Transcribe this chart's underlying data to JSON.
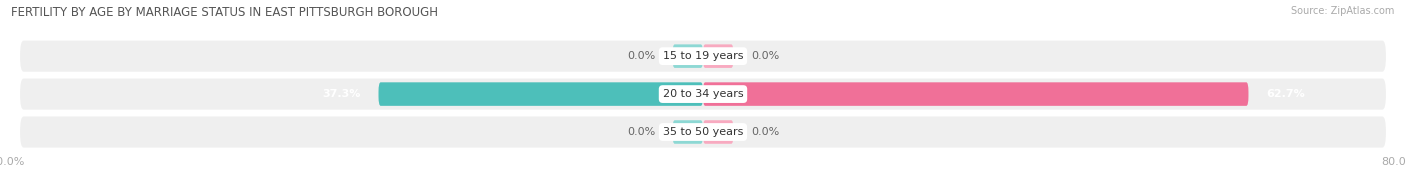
{
  "title": "FERTILITY BY AGE BY MARRIAGE STATUS IN EAST PITTSBURGH BOROUGH",
  "source": "Source: ZipAtlas.com",
  "categories": [
    "15 to 19 years",
    "20 to 34 years",
    "35 to 50 years"
  ],
  "married_values": [
    0.0,
    37.3,
    0.0
  ],
  "unmarried_values": [
    0.0,
    62.7,
    0.0
  ],
  "max_val": 80.0,
  "married_color": "#4dbfba",
  "unmarried_color": "#f07098",
  "married_stub_color": "#8dd8d4",
  "unmarried_stub_color": "#f8aac0",
  "row_bg_color": "#efefef",
  "row_sep_color": "#ffffff",
  "label_color": "#666666",
  "title_color": "#555555",
  "axis_label_color": "#aaaaaa",
  "figsize": [
    14.06,
    1.96
  ],
  "dpi": 100
}
